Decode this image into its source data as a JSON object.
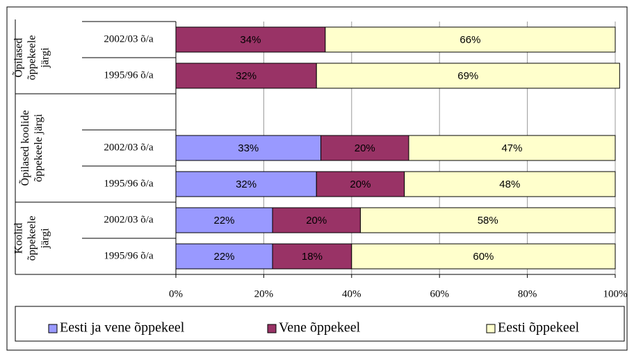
{
  "chart_data": {
    "type": "stacked_barh",
    "groups": [
      {
        "name_lines": [
          "Õpilased",
          "õppekeele",
          "järgi"
        ],
        "size": 2
      },
      {
        "name_lines": [
          "Õpilased koolide",
          "õppekeele järgi"
        ],
        "size": 3
      },
      {
        "name_lines": [
          "Koolid",
          "õppekeele",
          "järgi"
        ],
        "size": 2
      }
    ],
    "categories": [
      "2002/03 õ/a",
      "1995/96 õ/a",
      null,
      "2002/03 õ/a",
      "1995/96 õ/a",
      "2002/03 õ/a",
      "1995/96 õ/a"
    ],
    "series": [
      {
        "name": "Eesti ja vene õppekeel",
        "color": "#9999ff",
        "values": [
          null,
          null,
          null,
          33,
          32,
          22,
          22
        ],
        "value_labels": [
          null,
          null,
          null,
          "33%",
          "32%",
          "22%",
          "22%"
        ]
      },
      {
        "name": "Vene õppekeel",
        "color": "#993366",
        "values": [
          34,
          32,
          null,
          20,
          20,
          20,
          18
        ],
        "value_labels": [
          "34%",
          "32%",
          null,
          "20%",
          "20%",
          "20%",
          "18%"
        ]
      },
      {
        "name": "Eesti õppekeel",
        "color": "#ffffcc",
        "values": [
          66,
          69,
          null,
          47,
          48,
          58,
          60
        ],
        "value_labels": [
          "66%",
          "69%",
          null,
          "47%",
          "48%",
          "58%",
          "60%"
        ]
      }
    ],
    "xlim": [
      0,
      100
    ],
    "xticks": [
      {
        "value": 0,
        "label": "0%"
      },
      {
        "value": 20,
        "label": "20%"
      },
      {
        "value": 40,
        "label": "40%"
      },
      {
        "value": 60,
        "label": "60%"
      },
      {
        "value": 80,
        "label": "80%"
      },
      {
        "value": 100,
        "label": "100%"
      }
    ],
    "grid": true,
    "legend": "bottom"
  }
}
